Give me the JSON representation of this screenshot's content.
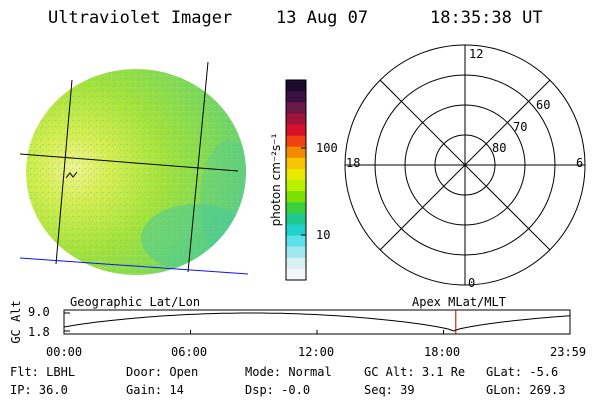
{
  "header": {
    "title": "Ultraviolet Imager",
    "date": "13 Aug 07",
    "time": "18:35:38 UT"
  },
  "image_panel": {
    "label": "Geographic Lat/Lon",
    "cursor_symbol": "~"
  },
  "colorbar": {
    "unit_label": "photon cm⁻²s⁻¹",
    "ticks": [
      {
        "value": 100,
        "label": "100"
      },
      {
        "value": 10,
        "label": "10"
      }
    ],
    "colors": [
      "#1a0b2e",
      "#3a1040",
      "#6a1846",
      "#a0133a",
      "#d8102a",
      "#f04010",
      "#f08a00",
      "#f6c400",
      "#e8e800",
      "#b8f000",
      "#7ce000",
      "#3cd040",
      "#20c890",
      "#22d0d0",
      "#5ee0e8",
      "#a0e8f0",
      "#d8f0f4",
      "#f2f6f8"
    ],
    "accent": "#000000"
  },
  "polar_panel": {
    "label": "Apex  MLat/MLT",
    "mlt_labels": [
      "12",
      "18",
      "6",
      "0"
    ],
    "lat_labels": [
      "60",
      "70",
      "80"
    ]
  },
  "orbit_plot": {
    "ylabel": "GC Alt",
    "ytick_labels": [
      "9.0",
      "1.8"
    ],
    "xtick_labels": [
      "00:00",
      "06:00",
      "12:00",
      "18:00",
      "23:59"
    ],
    "current_marker_time": "18:35",
    "marker_color": "#b00000"
  },
  "info": {
    "rows": [
      [
        {
          "label": "Flt:",
          "value": "LBHL"
        },
        {
          "label": "Door:",
          "value": "Open"
        },
        {
          "label": "Mode:",
          "value": "Normal"
        },
        {
          "label": "GC Alt:",
          "value": "3.1 Re"
        },
        {
          "label": "GLat:",
          "value": "-5.6"
        }
      ],
      [
        {
          "label": "IP:",
          "value": "36.0"
        },
        {
          "label": "Gain:",
          "value": "14"
        },
        {
          "label": "Dsp:",
          "value": "-0.0"
        },
        {
          "label": "Seq:",
          "value": "39"
        },
        {
          "label": "GLon:",
          "value": "269.3"
        }
      ]
    ]
  }
}
